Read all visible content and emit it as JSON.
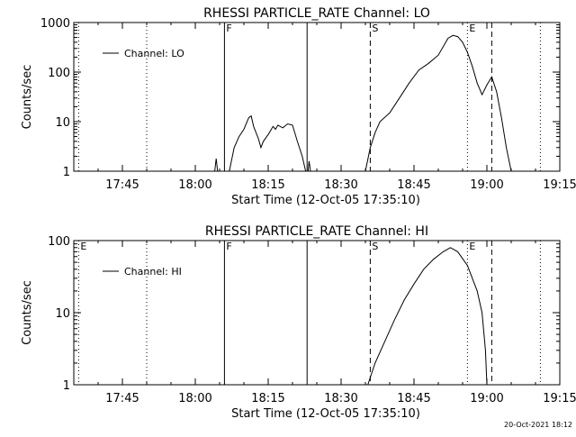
{
  "chart_data": [
    {
      "type": "line",
      "title": "RHESSI PARTICLE_RATE Channel: LO",
      "xlabel": "Start Time (12-Oct-05 17:35:10)",
      "ylabel": "Counts/sec",
      "x_unit": "time of day",
      "xlim": [
        "17:35",
        "19:15"
      ],
      "ylim": [
        1,
        1000
      ],
      "yscale": "log",
      "x_ticks": [
        "17:45",
        "18:00",
        "18:15",
        "18:30",
        "18:45",
        "19:00",
        "19:15"
      ],
      "y_ticks": [
        "1",
        "10",
        "100",
        "1000"
      ],
      "grid": false,
      "legend": {
        "position": "top-left",
        "entries": [
          "Channel: LO"
        ]
      },
      "vertical_lines": [
        {
          "x": "17:36",
          "style": "dotted"
        },
        {
          "x": "17:50",
          "style": "dotted"
        },
        {
          "x": "18:06",
          "style": "solid",
          "label": "F"
        },
        {
          "x": "18:23",
          "style": "solid"
        },
        {
          "x": "18:36",
          "style": "dashed",
          "label": "S"
        },
        {
          "x": "18:56",
          "style": "dotted",
          "label": "E"
        },
        {
          "x": "19:01",
          "style": "dashed"
        },
        {
          "x": "19:11",
          "style": "dotted"
        }
      ],
      "series": [
        {
          "name": "Channel: LO",
          "segments": [
            [
              [
                "18:04",
                1
              ],
              [
                "18:04.3",
                1.8
              ],
              [
                "18:04.6",
                1
              ]
            ],
            [
              [
                "18:07",
                1
              ],
              [
                "18:08",
                3
              ],
              [
                "18:09",
                5
              ],
              [
                "18:10",
                7
              ],
              [
                "18:11",
                12
              ],
              [
                "18:11.5",
                13
              ],
              [
                "18:12",
                8
              ],
              [
                "18:13",
                4.5
              ],
              [
                "18:13.5",
                3
              ],
              [
                "18:14",
                4
              ],
              [
                "18:15",
                5.5
              ],
              [
                "18:16",
                8
              ],
              [
                "18:16.5",
                7
              ],
              [
                "18:17",
                8.5
              ],
              [
                "18:18",
                7.5
              ],
              [
                "18:19",
                9
              ],
              [
                "18:20",
                8.5
              ],
              [
                "18:21",
                4
              ],
              [
                "18:22",
                2
              ],
              [
                "18:22.7",
                1
              ]
            ],
            [
              [
                "18:23.2",
                1
              ],
              [
                "18:23.4",
                1.6
              ],
              [
                "18:23.7",
                1
              ]
            ],
            [
              [
                "18:35",
                1
              ],
              [
                "18:36",
                3
              ],
              [
                "18:37",
                6
              ],
              [
                "18:38",
                10
              ],
              [
                "18:40",
                15
              ],
              [
                "18:42",
                30
              ],
              [
                "18:44",
                60
              ],
              [
                "18:46",
                110
              ],
              [
                "18:48",
                150
              ],
              [
                "18:50",
                220
              ],
              [
                "18:52",
                480
              ],
              [
                "18:53",
                550
              ],
              [
                "18:54",
                520
              ],
              [
                "18:55",
                400
              ],
              [
                "18:56",
                250
              ],
              [
                "18:57",
                130
              ],
              [
                "18:58",
                60
              ],
              [
                "18:59",
                35
              ],
              [
                "19:00",
                55
              ],
              [
                "19:01",
                80
              ],
              [
                "19:02",
                40
              ],
              [
                "19:03",
                12
              ],
              [
                "19:04",
                3
              ],
              [
                "19:05",
                1
              ]
            ]
          ]
        }
      ]
    },
    {
      "type": "line",
      "title": "RHESSI PARTICLE_RATE Channel: HI",
      "xlabel": "Start Time (12-Oct-05 17:35:10)",
      "ylabel": "Counts/sec",
      "x_unit": "time of day",
      "xlim": [
        "17:35",
        "19:15"
      ],
      "ylim": [
        1,
        100
      ],
      "yscale": "log",
      "x_ticks": [
        "17:45",
        "18:00",
        "18:15",
        "18:30",
        "18:45",
        "19:00",
        "19:15"
      ],
      "y_ticks": [
        "1",
        "10",
        "100"
      ],
      "grid": false,
      "legend": {
        "position": "top-left",
        "entries": [
          "Channel: HI"
        ]
      },
      "vertical_lines": [
        {
          "x": "17:36",
          "style": "dotted",
          "label": "E"
        },
        {
          "x": "17:50",
          "style": "dotted"
        },
        {
          "x": "18:06",
          "style": "solid",
          "label": "F"
        },
        {
          "x": "18:23",
          "style": "solid"
        },
        {
          "x": "18:36",
          "style": "dashed",
          "label": "S"
        },
        {
          "x": "18:56",
          "style": "dotted",
          "label": "E"
        },
        {
          "x": "19:01",
          "style": "dashed"
        },
        {
          "x": "19:11",
          "style": "dotted"
        }
      ],
      "series": [
        {
          "name": "Channel: HI",
          "segments": [
            [
              [
                "18:35.5",
                1
              ],
              [
                "18:37",
                2
              ],
              [
                "18:39",
                4
              ],
              [
                "18:41",
                8
              ],
              [
                "18:43",
                15
              ],
              [
                "18:45",
                25
              ],
              [
                "18:47",
                40
              ],
              [
                "18:49",
                55
              ],
              [
                "18:51",
                70
              ],
              [
                "18:52.5",
                80
              ],
              [
                "18:54",
                70
              ],
              [
                "18:56",
                45
              ],
              [
                "18:58",
                20
              ],
              [
                "18:59",
                10
              ],
              [
                "18:59.7",
                3
              ],
              [
                "19:00",
                1
              ]
            ]
          ]
        }
      ]
    }
  ],
  "footer": {
    "timestamp": "20-Oct-2021 18:12"
  }
}
